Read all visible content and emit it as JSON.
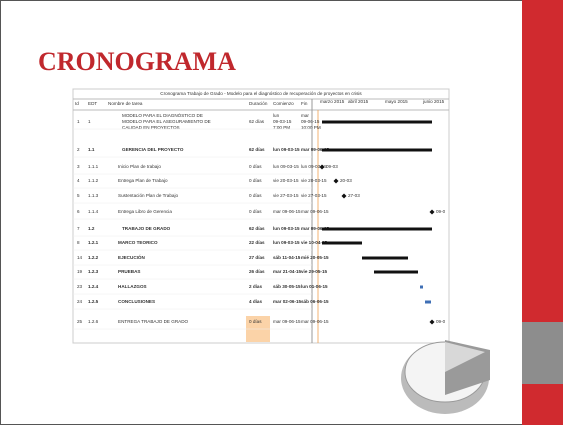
{
  "slide": {
    "title": "CRONOGRAMA"
  },
  "gantt": {
    "title": "Cronograma Trabajo de Grado - Modelo para el diagnóstico de recuperación de proyectos en crisis",
    "headers": [
      "Id",
      "EDT",
      "Nombre de tarea",
      "Duración",
      "Comienzo",
      "Fin"
    ],
    "months": [
      "marzo 2015",
      "abril 2015",
      "mayo 2015",
      "junio 2015"
    ],
    "rows": [
      {
        "id": "1",
        "wbs": "1",
        "name": [
          "MODELO PARA EL DIAGNÓSTICO DE",
          "MODELO PARA EL ASEGURAMIENTO DE",
          "CALIDAD EN PROYECTOS"
        ],
        "duration": "62 días",
        "start": [
          "lun",
          "09-03-15",
          "7:00 PM"
        ],
        "finish": [
          "mar",
          "09-06-15",
          "10:00 PM"
        ]
      },
      {
        "id": "2",
        "wbs": "1.1",
        "name": "GERENCIA DEL PROYECTO",
        "duration": "62 días",
        "start": "lun 09-03-15",
        "finish": "mar 09-06-15"
      },
      {
        "id": "3",
        "wbs": "1.1.1",
        "name": "Inicio Plan de trabajo",
        "duration": "0 días",
        "start": "lun 09-03-15",
        "finish": "lun 09-03-15",
        "marker": "09-03"
      },
      {
        "id": "4",
        "wbs": "1.1.2",
        "name": "Entrega Plan de Trabajo",
        "duration": "0 días",
        "start": "vie 20-03-15",
        "finish": "vie 20-03-15",
        "marker": "20-03"
      },
      {
        "id": "5",
        "wbs": "1.1.3",
        "name": "Sustentación Plan de Trabajo",
        "duration": "0 días",
        "start": "vie 27-03-15",
        "finish": "vie 27-03-15",
        "marker": "27-03"
      },
      {
        "id": "6",
        "wbs": "1.1.4",
        "name": "Entrega Libro de Gerencia",
        "duration": "0 días",
        "start": "mar 09-06-15",
        "finish": "mar 09-06-15",
        "marker": "09-0"
      },
      {
        "id": "7",
        "wbs": "1.2",
        "name": "TRABAJO DE GRADO",
        "duration": "62 días",
        "start": "lun 09-03-15",
        "finish": "mar 09-06-15"
      },
      {
        "id": "8",
        "wbs": "1.2.1",
        "name": "MARCO TEORICO",
        "duration": "22 días",
        "start": "lun 09-03-15",
        "finish": "vie 10-04-15"
      },
      {
        "id": "14",
        "wbs": "1.2.2",
        "name": "EJECUCIÓN",
        "duration": "27 días",
        "start": "sáb 11-04-15",
        "finish": "mié 20-05-15"
      },
      {
        "id": "19",
        "wbs": "1.2.3",
        "name": "PRUEBAS",
        "duration": "26 días",
        "start": "mar 21-04-15",
        "finish": "vie 29-05-15"
      },
      {
        "id": "23",
        "wbs": "1.2.4",
        "name": "HALLAZGOS",
        "duration": "2 días",
        "start": "sáb 30-05-15",
        "finish": "lun 01-06-15"
      },
      {
        "id": "24",
        "wbs": "1.2.5",
        "name": "CONCLUSIONES",
        "duration": "4 días",
        "start": "mar 02-06-15",
        "finish": "sáb 06-06-15"
      },
      {
        "id": "25",
        "wbs": "1.2.6",
        "name": "ENTREGA TRABAJO DE GRADO",
        "duration": "0 días",
        "start": "mar 09-06-15",
        "finish": "mar 09-06-15",
        "marker": "09-0"
      }
    ]
  }
}
